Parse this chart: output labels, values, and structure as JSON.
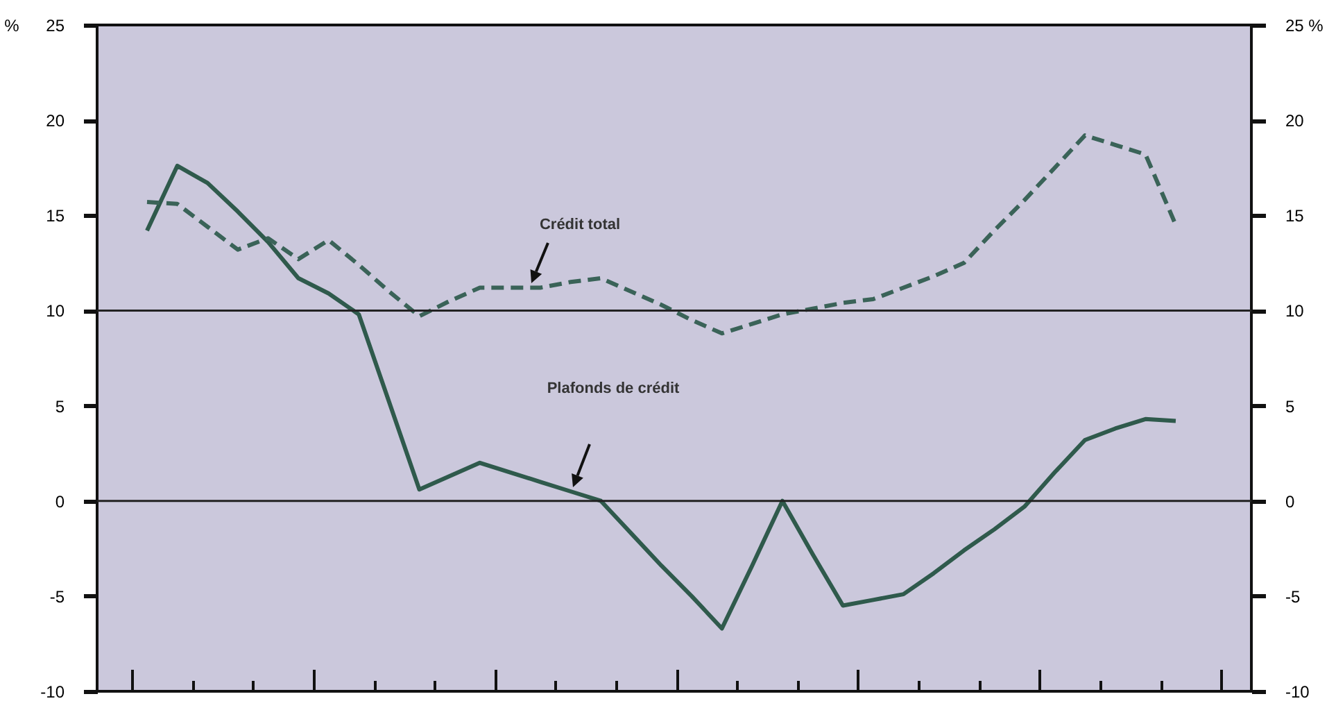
{
  "chart_data": {
    "type": "line",
    "ylabel": "%",
    "y2label": "%",
    "categories": [
      null,
      null,
      null,
      null,
      null,
      null,
      null,
      null,
      null,
      null,
      null,
      null,
      null,
      null,
      null,
      null,
      null,
      null,
      null,
      null,
      null,
      null,
      null,
      null,
      null,
      null,
      null,
      null,
      null,
      null,
      null,
      null,
      null,
      null,
      null,
      null
    ],
    "ylim": [
      -10,
      25
    ],
    "yticks": [
      -10,
      -5,
      0,
      5,
      10,
      15,
      20,
      25
    ],
    "y2lim": [
      -10,
      25
    ],
    "y2ticks": [
      -10,
      -5,
      0,
      5,
      10,
      15,
      20,
      25
    ],
    "tick_labels": "y",
    "series": [
      {
        "color": "#2f5a4c",
        "line_style": "solid",
        "values": [
          14.2,
          17.6,
          16.7,
          15.2,
          13.6,
          11.7,
          10.9,
          9.8,
          5.2,
          0.6,
          1.3,
          2.0,
          1.5,
          1.0,
          0.5,
          0,
          -1.7,
          -3.4,
          -5.0,
          -6.7,
          -3.4,
          0,
          -2.8,
          -5.5,
          -5.2,
          -4.9,
          -3.8,
          -2.6,
          -1.5,
          -0.3,
          1.5,
          3.2,
          3.8,
          4.3,
          4.2,
          null
        ]
      },
      {
        "color": "#3a6358",
        "line_style": "dashed",
        "values": [
          15.7,
          15.6,
          14.4,
          13.2,
          13.8,
          12.7,
          13.7,
          12.4,
          11.0,
          9.7,
          10.5,
          11.2,
          11.2,
          11.2,
          11.5,
          11.7,
          11.0,
          10.3,
          9.5,
          8.8,
          9.3,
          9.8,
          10.1,
          10.4,
          10.6,
          11.2,
          11.8,
          12.5,
          14.2,
          15.8,
          17.5,
          19.2,
          18.7,
          18.2,
          14.5,
          null
        ]
      }
    ],
    "ref_lines": [
      {
        "axis": "y",
        "value": 0
      },
      {
        "axis": "y",
        "value": 10
      }
    ],
    "annotations": [
      "Crédit total",
      "Plafonds de crédit"
    ]
  }
}
